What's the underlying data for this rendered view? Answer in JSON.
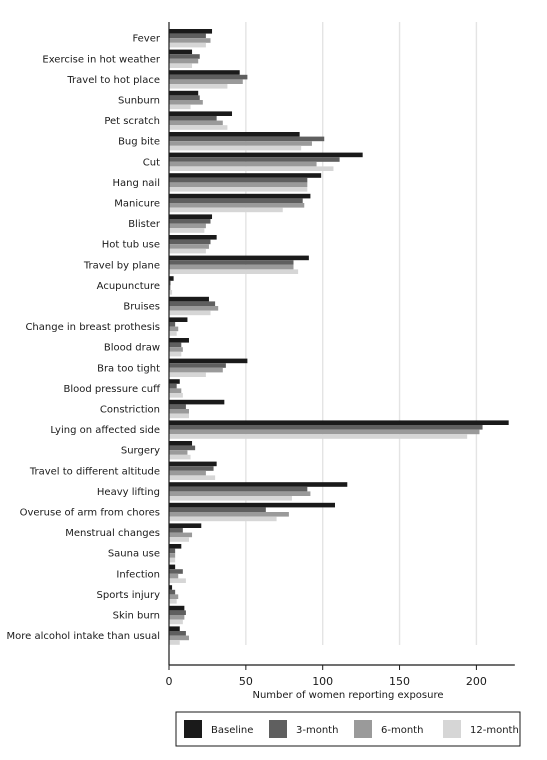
{
  "chart_data": {
    "type": "bar",
    "orientation": "horizontal",
    "title": "",
    "xlabel": "Number of women reporting exposure",
    "ylabel": "",
    "xlim": [
      0,
      225
    ],
    "xticks": [
      0,
      50,
      100,
      150,
      200
    ],
    "grid": "vertical",
    "legend_position": "bottom",
    "categories": [
      "Fever",
      "Exercise in hot weather",
      "Travel to hot place",
      "Sunburn",
      "Pet scratch",
      "Bug bite",
      "Cut",
      "Hang nail",
      "Manicure",
      "Blister",
      "Hot tub use",
      "Travel by plane",
      "Acupuncture",
      "Bruises",
      "Change in breast prothesis",
      "Blood draw",
      "Bra too tight",
      "Blood pressure cuff",
      "Constriction",
      "Lying on affected side",
      "Surgery",
      "Travel to different altitude",
      "Heavy lifting",
      "Overuse of arm from chores",
      "Menstrual changes",
      "Sauna use",
      "Infection",
      "Sports injury",
      "Skin burn",
      "More alcohol intake than usual"
    ],
    "series": [
      {
        "name": "Baseline",
        "color": "#1a1a1a",
        "values": [
          28,
          15,
          46,
          19,
          41,
          85,
          126,
          99,
          92,
          28,
          31,
          91,
          3,
          26,
          12,
          13,
          51,
          7,
          36,
          221,
          15,
          31,
          116,
          108,
          21,
          8,
          4,
          2,
          10,
          7
        ]
      },
      {
        "name": "3-month",
        "color": "#5f5f5f",
        "values": [
          24,
          20,
          51,
          20,
          31,
          101,
          111,
          90,
          87,
          27,
          27,
          81,
          1,
          30,
          4,
          8,
          37,
          5,
          11,
          204,
          17,
          29,
          90,
          63,
          9,
          4,
          9,
          4,
          11,
          11
        ]
      },
      {
        "name": "6-month",
        "color": "#9a9a9a",
        "values": [
          27,
          19,
          48,
          22,
          35,
          93,
          96,
          90,
          88,
          24,
          26,
          81,
          1,
          32,
          6,
          9,
          35,
          8,
          13,
          202,
          12,
          24,
          92,
          78,
          15,
          4,
          6,
          6,
          10,
          13
        ]
      },
      {
        "name": "12-month",
        "color": "#d6d6d6",
        "values": [
          24,
          15,
          38,
          14,
          38,
          86,
          107,
          90,
          74,
          23,
          24,
          84,
          2,
          27,
          5,
          8,
          24,
          9,
          13,
          194,
          14,
          30,
          80,
          70,
          13,
          4,
          11,
          5,
          9,
          7
        ]
      }
    ]
  }
}
